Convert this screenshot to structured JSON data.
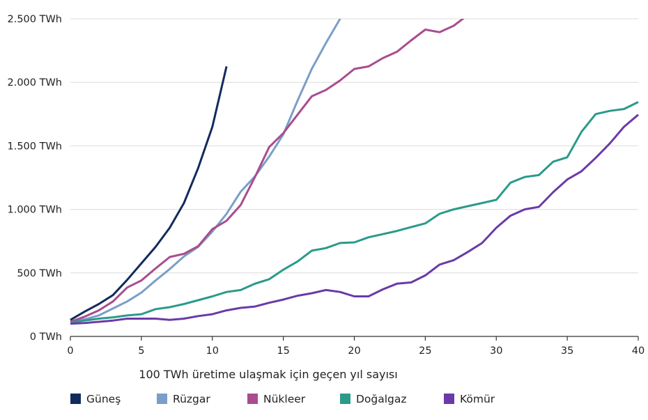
{
  "chart_data": {
    "type": "line",
    "title": "",
    "xlabel": "100 TWh üretime ulaşmak için geçen yıl sayısı",
    "ylabel": "",
    "xlim": [
      0,
      40
    ],
    "ylim": [
      0,
      2500
    ],
    "x_ticks": [
      0,
      5,
      10,
      15,
      20,
      25,
      30,
      35,
      40
    ],
    "y_ticks": [
      0,
      500,
      1000,
      1500,
      2000,
      2500
    ],
    "y_tick_labels": [
      "0 TWh",
      "500 TWh",
      "1.000 TWh",
      "1.500 TWh",
      "2.000 TWh",
      "2.500 TWh"
    ],
    "grid": "horizontal",
    "legend_position": "bottom",
    "series": [
      {
        "name": "Güneş",
        "color": "#122b5c",
        "x": [
          0,
          1,
          2,
          3,
          4,
          5,
          6,
          7,
          8,
          9,
          10,
          11
        ],
        "values": [
          130,
          195,
          255,
          325,
          445,
          575,
          705,
          855,
          1050,
          1325,
          1650,
          2125
        ]
      },
      {
        "name": "Rüzgar",
        "color": "#7a9ec8",
        "x": [
          0,
          1,
          2,
          3,
          4,
          5,
          6,
          7,
          8,
          9,
          10,
          11,
          12,
          13,
          14,
          15,
          16,
          17,
          18,
          19
        ],
        "values": [
          115,
          135,
          165,
          220,
          275,
          345,
          440,
          530,
          630,
          705,
          825,
          965,
          1140,
          1260,
          1415,
          1590,
          1855,
          2105,
          2310,
          2500
        ]
      },
      {
        "name": "Nükleer",
        "color": "#a84d8e",
        "x": [
          0,
          1,
          2,
          3,
          4,
          5,
          6,
          7,
          8,
          9,
          10,
          11,
          12,
          13,
          14,
          15,
          16,
          17,
          18,
          19,
          20,
          21,
          22,
          23,
          24,
          25,
          26,
          27,
          28
        ],
        "values": [
          115,
          155,
          205,
          275,
          385,
          440,
          535,
          625,
          650,
          710,
          845,
          910,
          1035,
          1255,
          1490,
          1600,
          1745,
          1890,
          1940,
          2015,
          2105,
          2125,
          2190,
          2240,
          2330,
          2415,
          2395,
          2445,
          2530
        ]
      },
      {
        "name": "Doğalgaz",
        "color": "#2a9a8a",
        "x": [
          0,
          1,
          2,
          3,
          4,
          5,
          6,
          7,
          8,
          9,
          10,
          11,
          12,
          13,
          14,
          15,
          16,
          17,
          18,
          19,
          20,
          21,
          22,
          23,
          24,
          25,
          26,
          27,
          28,
          29,
          30,
          31,
          32,
          33,
          34,
          35,
          36,
          37,
          38,
          39,
          40
        ],
        "values": [
          110,
          125,
          140,
          150,
          165,
          175,
          215,
          230,
          255,
          285,
          315,
          350,
          365,
          415,
          450,
          525,
          590,
          675,
          695,
          735,
          740,
          780,
          805,
          830,
          860,
          890,
          965,
          1000,
          1025,
          1050,
          1075,
          1210,
          1255,
          1270,
          1375,
          1410,
          1610,
          1750,
          1775,
          1790,
          1845
        ]
      },
      {
        "name": "Kömür",
        "color": "#6a3aa8",
        "x": [
          0,
          1,
          2,
          3,
          4,
          5,
          6,
          7,
          8,
          9,
          10,
          11,
          12,
          13,
          14,
          15,
          16,
          17,
          18,
          19,
          20,
          21,
          22,
          23,
          24,
          25,
          26,
          27,
          28,
          29,
          30,
          31,
          32,
          33,
          34,
          35,
          36,
          37,
          38,
          39,
          40
        ],
        "values": [
          100,
          105,
          115,
          125,
          140,
          140,
          140,
          130,
          140,
          160,
          175,
          205,
          225,
          235,
          265,
          290,
          320,
          340,
          365,
          350,
          315,
          315,
          370,
          415,
          425,
          480,
          565,
          600,
          665,
          735,
          855,
          950,
          1000,
          1020,
          1135,
          1235,
          1300,
          1405,
          1520,
          1650,
          1745
        ]
      }
    ]
  }
}
